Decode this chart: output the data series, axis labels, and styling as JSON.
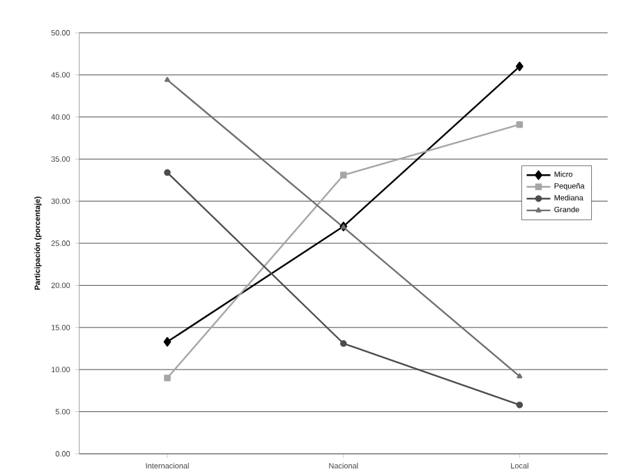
{
  "chart_data": {
    "type": "line",
    "ylabel": "Participación (porcentaje)",
    "categories": [
      "Internacional",
      "Nacional",
      "Local"
    ],
    "series": [
      {
        "name": "Micro",
        "color": "#000000",
        "marker": "diamond",
        "values": [
          13.3,
          27.0,
          46.0
        ]
      },
      {
        "name": "Pequeña",
        "color": "#a6a6a6",
        "marker": "square",
        "values": [
          9.0,
          33.1,
          39.1
        ]
      },
      {
        "name": "Mediana",
        "color": "#4d4d4d",
        "marker": "circle",
        "values": [
          33.4,
          13.1,
          5.8
        ]
      },
      {
        "name": "Grande",
        "color": "#707070",
        "marker": "triangle",
        "values": [
          44.4,
          26.9,
          9.2
        ]
      }
    ],
    "ylim": [
      0,
      50
    ],
    "yticks": [
      {
        "value": 0,
        "label": "0.00"
      },
      {
        "value": 5,
        "label": "5.00"
      },
      {
        "value": 10,
        "label": "10.00"
      },
      {
        "value": 15,
        "label": "15.00"
      },
      {
        "value": 20,
        "label": "20.00"
      },
      {
        "value": 25,
        "label": "25.00"
      },
      {
        "value": 30,
        "label": "30.00"
      },
      {
        "value": 35,
        "label": "35.00"
      },
      {
        "value": 40,
        "label": "40.00"
      },
      {
        "value": 45,
        "label": "45.00"
      },
      {
        "value": 50,
        "label": "50.00"
      }
    ],
    "grid": "y",
    "legend": "right"
  }
}
